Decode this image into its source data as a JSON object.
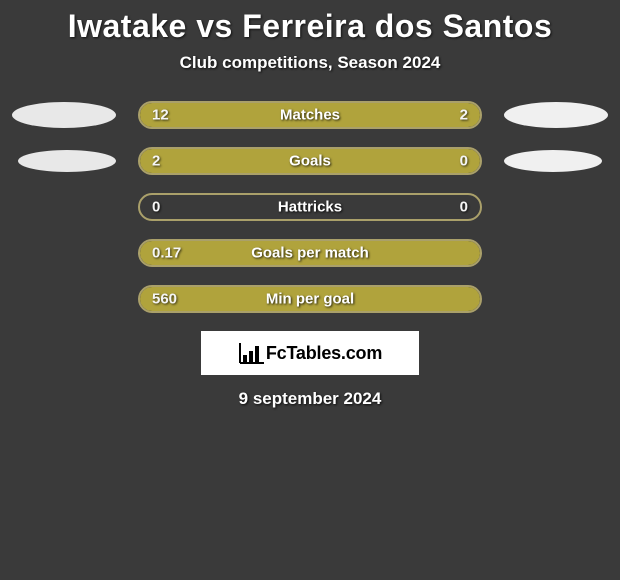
{
  "title": "Iwatake vs Ferreira dos Santos",
  "subtitle": "Club competitions, Season 2024",
  "date": "9 september 2024",
  "logo_text": "FcTables.com",
  "colors": {
    "background": "#3a3a3a",
    "bar_fill": "#b0a33c",
    "bar_border": "#aaa06a",
    "ellipse_left": "#e8e8e8",
    "ellipse_right": "#f0f0f0",
    "text": "#ffffff"
  },
  "stats": [
    {
      "label": "Matches",
      "left_value": "12",
      "right_value": "2",
      "left_pct": 78,
      "right_pct": 22,
      "show_left_badge": true,
      "show_right_badge": true,
      "badge_size": "major"
    },
    {
      "label": "Goals",
      "left_value": "2",
      "right_value": "0",
      "left_pct": 80,
      "right_pct": 20,
      "show_left_badge": true,
      "show_right_badge": true,
      "badge_size": "minor"
    },
    {
      "label": "Hattricks",
      "left_value": "0",
      "right_value": "0",
      "left_pct": 0,
      "right_pct": 0,
      "show_left_badge": false,
      "show_right_badge": false,
      "badge_size": "none"
    },
    {
      "label": "Goals per match",
      "left_value": "0.17",
      "right_value": "",
      "left_pct": 100,
      "right_pct": 0,
      "show_left_badge": false,
      "show_right_badge": false,
      "badge_size": "none"
    },
    {
      "label": "Min per goal",
      "left_value": "560",
      "right_value": "",
      "left_pct": 100,
      "right_pct": 0,
      "show_left_badge": false,
      "show_right_badge": false,
      "badge_size": "none"
    }
  ]
}
